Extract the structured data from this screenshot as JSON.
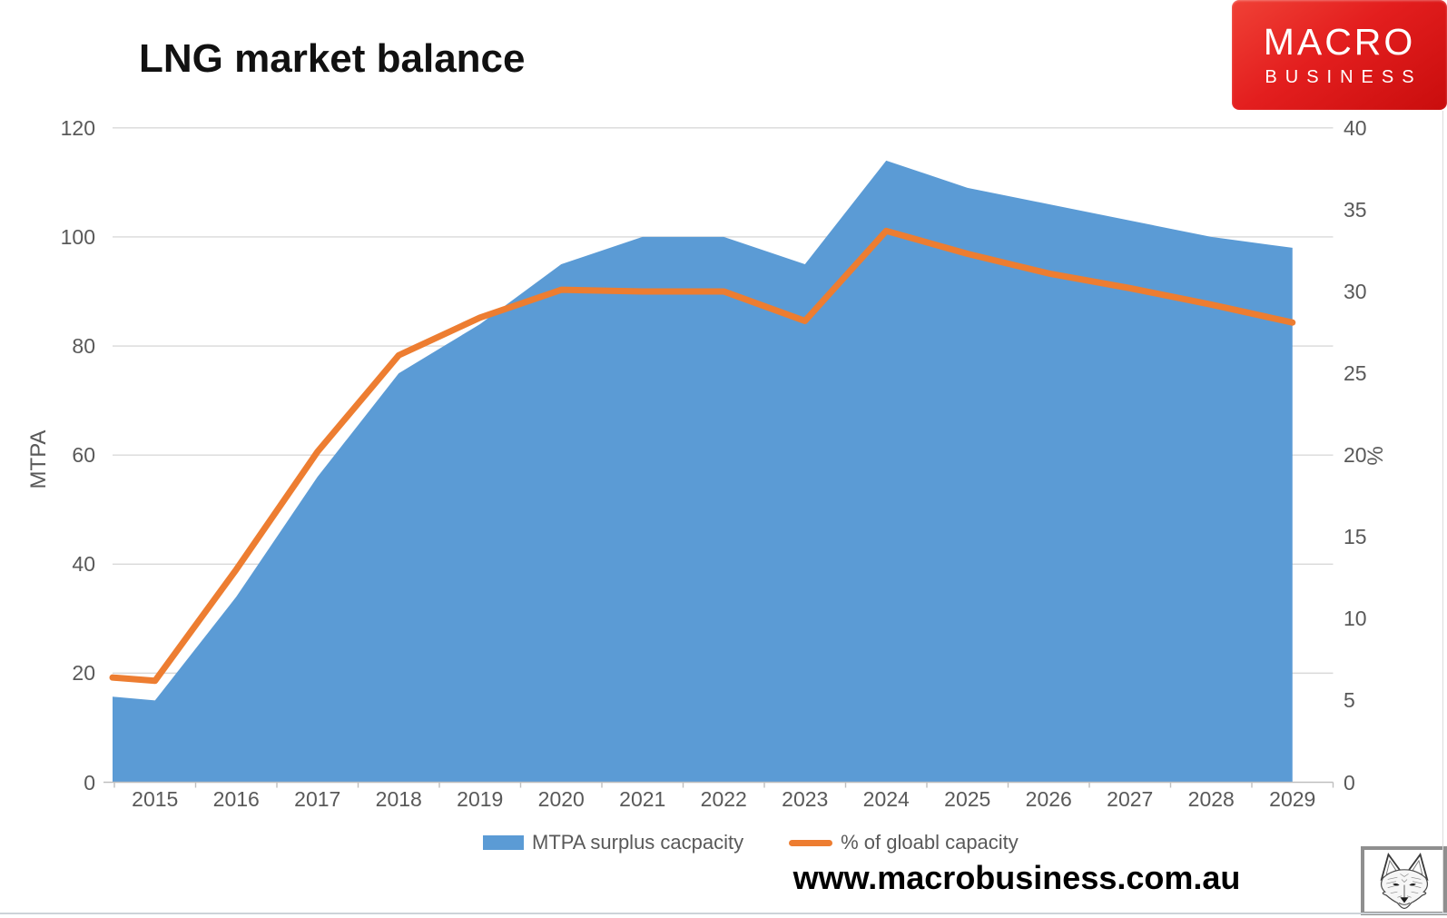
{
  "header": {
    "title": "LNG market balance"
  },
  "logo": {
    "line1": "MACRO",
    "line2": "BUSINESS",
    "bg_color": "#e31e1e"
  },
  "footer": {
    "url": "www.macrobusiness.com.au"
  },
  "legend": {
    "items": [
      {
        "label": "MTPA surplus cacpacity",
        "swatch": "area",
        "color": "#5B9BD5"
      },
      {
        "label": "% of gloabl capacity",
        "swatch": "line",
        "color": "#ED7D31"
      }
    ]
  },
  "chart_data": {
    "type": "area",
    "title": "LNG market balance",
    "categories": [
      "2015",
      "2016",
      "2017",
      "2018",
      "2019",
      "2020",
      "2021",
      "2022",
      "2023",
      "2024",
      "2025",
      "2026",
      "2027",
      "2028",
      "2029"
    ],
    "series": [
      {
        "name": "MTPA surplus cacpacity",
        "type": "area",
        "axis": "left",
        "color": "#5B9BD5",
        "values": [
          15,
          34,
          56,
          75,
          84,
          95,
          100,
          100,
          95,
          114,
          109,
          106,
          103,
          100,
          98
        ]
      },
      {
        "name": "% of gloabl capacity",
        "type": "line",
        "axis": "right",
        "color": "#ED7D31",
        "values": [
          6.2,
          13,
          20.2,
          26.1,
          28.4,
          30.1,
          30,
          30,
          28.2,
          33.7,
          32.3,
          31.1,
          30.2,
          29.2,
          28.1
        ]
      }
    ],
    "edge_start": {
      "mtpa": 15.7,
      "pct": 6.4
    },
    "left_axis": {
      "label": "MTPA",
      "min": 0,
      "max": 120,
      "step": 20,
      "ticks": [
        "0",
        "20",
        "40",
        "60",
        "80",
        "100",
        "120"
      ]
    },
    "right_axis": {
      "label": "%",
      "min": 0,
      "max": 40,
      "step": 5,
      "ticks": [
        "0",
        "5",
        "10",
        "15",
        "20",
        "25",
        "30",
        "35",
        "40"
      ]
    },
    "grid": {
      "show_horizontal": true,
      "color": "#D9D9D9",
      "axis_color": "#BFBFBF"
    },
    "legend_position": "bottom"
  }
}
